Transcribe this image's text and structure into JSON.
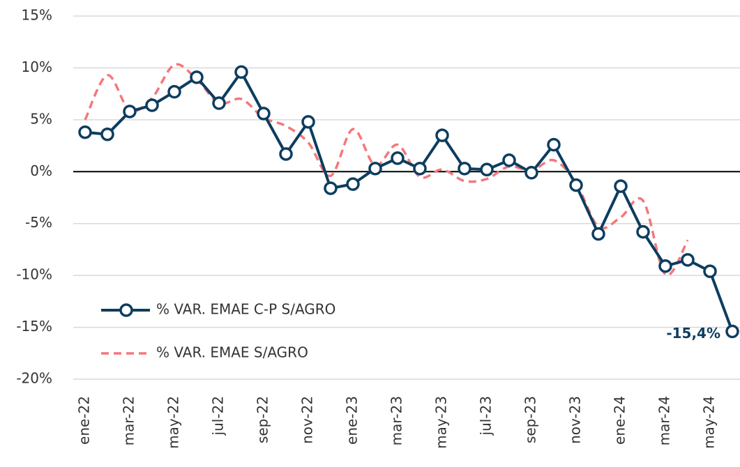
{
  "chart_data": {
    "type": "line",
    "categories": [
      "ene-22",
      null,
      "mar-22",
      null,
      "may-22",
      null,
      "jul-22",
      null,
      "sep-22",
      null,
      "nov-22",
      null,
      "ene-23",
      null,
      "mar-23",
      null,
      "may-23",
      null,
      "jul-23",
      null,
      "sep-23",
      null,
      "nov-23",
      null,
      "ene-24",
      null,
      "mar-24",
      null,
      "may-24",
      null
    ],
    "series": [
      {
        "name": "% VAR. EMAE C-P S/AGRO",
        "color": "#0d3d5f",
        "values": [
          3.8,
          3.6,
          5.8,
          6.4,
          7.7,
          9.1,
          6.6,
          9.6,
          5.6,
          1.7,
          4.8,
          -1.6,
          -1.2,
          0.3,
          1.3,
          0.3,
          3.5,
          0.3,
          0.2,
          1.1,
          -0.1,
          2.6,
          -1.3,
          -6.0,
          -1.4,
          -5.8,
          -9.1,
          -8.5,
          -9.6,
          -15.4
        ],
        "value_labels": [
          null,
          null,
          null,
          null,
          null,
          null,
          null,
          null,
          null,
          null,
          null,
          null,
          null,
          null,
          null,
          null,
          null,
          null,
          null,
          null,
          null,
          null,
          null,
          null,
          null,
          null,
          null,
          null,
          null,
          "-15,4%"
        ]
      },
      {
        "name": "% VAR. EMAE S/AGRO",
        "color": "#f4777b",
        "values": [
          5.0,
          9.3,
          5.9,
          7.1,
          10.3,
          8.9,
          6.6,
          7.0,
          5.2,
          4.4,
          2.8,
          -0.4,
          4.1,
          0.6,
          2.6,
          -0.5,
          0.2,
          -0.9,
          -0.7,
          0.5,
          0.1,
          1.1,
          -1.1,
          -5.3,
          -4.4,
          -2.8,
          -9.9,
          -6.6,
          null,
          null
        ]
      }
    ],
    "ylim": [
      -20,
      15
    ],
    "yticks": [
      {
        "value": -20,
        "label": "-20%"
      },
      {
        "value": -15,
        "label": "-15%"
      },
      {
        "value": -10,
        "label": "-10%"
      },
      {
        "value": -5,
        "label": "-5%"
      },
      {
        "value": 0,
        "label": "0%"
      },
      {
        "value": 5,
        "label": "5%"
      },
      {
        "value": 10,
        "label": "10%"
      },
      {
        "value": 15,
        "label": "15%"
      }
    ],
    "grid": true
  }
}
